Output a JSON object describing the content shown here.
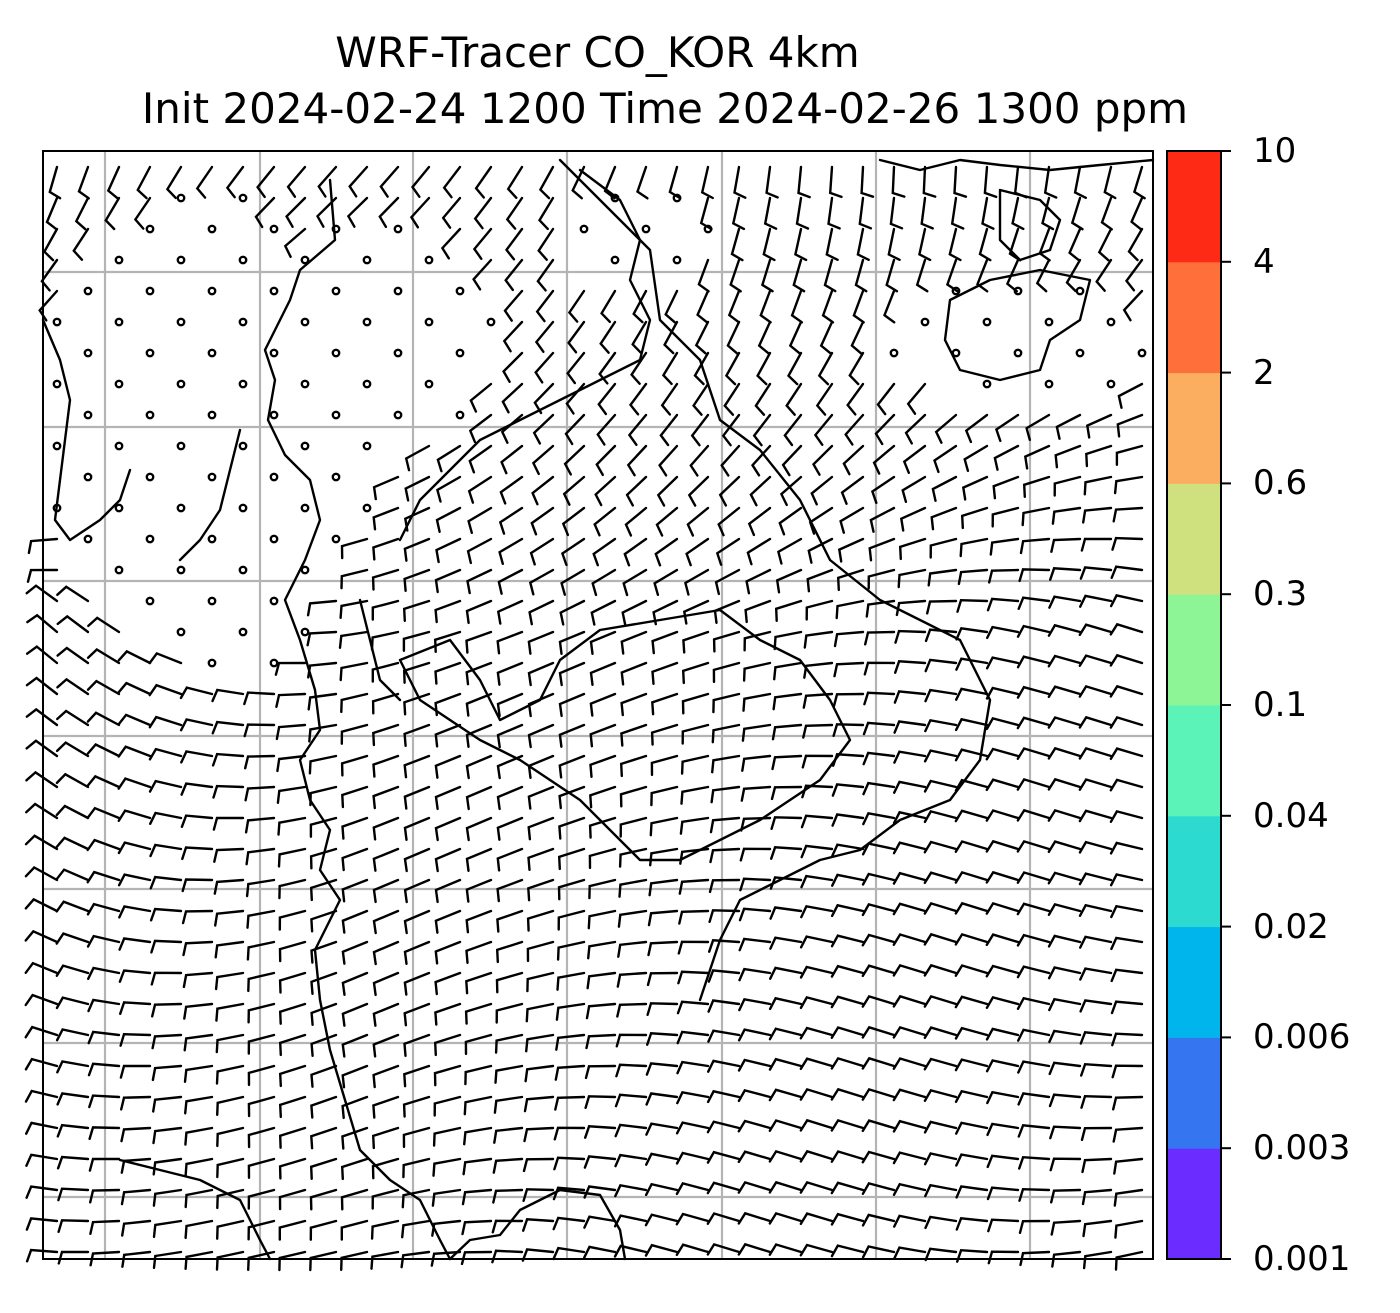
{
  "title": {
    "line1": "WRF-Tracer CO_KOR 4km",
    "line2": "Init 2024-02-24 1200 Time 2024-02-26 1300 ppm"
  },
  "colorbar": {
    "levels": [
      "0.001",
      "0.003",
      "0.006",
      "0.02",
      "0.04",
      "0.1",
      "0.3",
      "0.6",
      "2",
      "4",
      "10"
    ],
    "colors": [
      "#6a2cff",
      "#3576f0",
      "#00b4ec",
      "#2ddad0",
      "#5cf3b9",
      "#8df595",
      "#cfe07f",
      "#fcae60",
      "#ff6f3a",
      "#ff2a16"
    ]
  },
  "map": {
    "coastline_color": "#000000",
    "gridline_color": "#b4b4b4",
    "wind_barb_color": "#000000"
  }
}
